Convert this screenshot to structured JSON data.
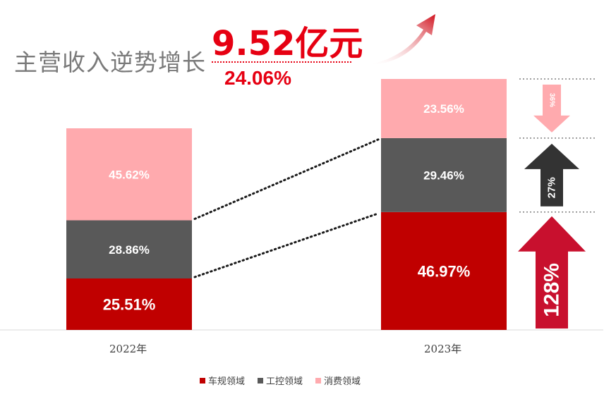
{
  "headline": "主营收入逆势增长",
  "revenue_value": "9.52亿元",
  "revenue_growth": "24.06%",
  "colors": {
    "vehicle": "#c00000",
    "industrial": "#595959",
    "consumer": "#ffaaae",
    "accent": "#e60012"
  },
  "chart_data": {
    "type": "bar",
    "stacked": true,
    "categories": [
      "2022年",
      "2023年"
    ],
    "series": [
      {
        "name": "车规领域",
        "values": [
          25.51,
          46.97
        ],
        "labels": [
          "25.51%",
          "46.97%"
        ]
      },
      {
        "name": "工控领域",
        "values": [
          28.86,
          29.46
        ],
        "labels": [
          "28.86%",
          "29.46%"
        ]
      },
      {
        "name": "消费领域",
        "values": [
          45.62,
          23.56
        ],
        "labels": [
          "45.62%",
          "23.56%"
        ]
      }
    ],
    "legend_position": "bottom",
    "annotations": [
      {
        "series": "消费领域",
        "label": "36%",
        "direction": "down"
      },
      {
        "series": "工控领域",
        "label": "27%",
        "direction": "up"
      },
      {
        "series": "车规领域",
        "label": "128%",
        "direction": "up"
      }
    ]
  }
}
